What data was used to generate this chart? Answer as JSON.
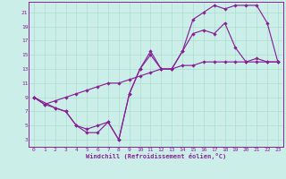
{
  "xlabel": "Windchill (Refroidissement éolien,°C)",
  "background_color": "#cceee8",
  "grid_color": "#aaddcc",
  "line_color": "#882299",
  "xlim_min": -0.5,
  "xlim_max": 23.5,
  "ylim_min": 2.0,
  "ylim_max": 22.5,
  "xticks": [
    0,
    1,
    2,
    3,
    4,
    5,
    6,
    7,
    8,
    9,
    10,
    11,
    12,
    13,
    14,
    15,
    16,
    17,
    18,
    19,
    20,
    21,
    22,
    23
  ],
  "yticks": [
    3,
    5,
    7,
    9,
    11,
    13,
    15,
    17,
    19,
    21
  ],
  "line1_x": [
    0,
    1,
    2,
    3,
    4,
    5,
    6,
    7,
    8,
    9,
    10,
    11,
    12,
    13,
    14,
    15,
    16,
    17,
    18,
    19,
    20,
    21,
    22,
    23
  ],
  "line1_y": [
    9,
    8,
    8.5,
    9,
    9.5,
    10,
    10.5,
    11,
    11,
    11.5,
    12,
    12.5,
    13,
    13,
    13.5,
    13.5,
    14,
    14,
    14,
    14,
    14,
    14,
    14,
    14
  ],
  "line2_x": [
    0,
    2,
    3,
    4,
    5,
    6,
    7,
    8,
    9,
    10,
    11,
    12,
    13,
    14,
    15,
    16,
    17,
    18,
    19,
    20,
    21,
    22,
    23
  ],
  "line2_y": [
    9,
    7.5,
    7,
    5,
    4.5,
    5,
    5.5,
    3,
    9.5,
    13,
    15,
    13,
    13,
    15.5,
    18,
    18.5,
    18,
    19.5,
    16,
    14,
    14.5,
    14,
    14
  ],
  "line3_x": [
    0,
    1,
    2,
    3,
    4,
    5,
    6,
    7,
    8,
    9,
    10,
    11,
    12,
    13,
    14,
    15,
    16,
    17,
    18,
    19,
    20,
    21,
    22,
    23
  ],
  "line3_y": [
    9,
    8,
    7.5,
    7,
    5,
    4,
    4,
    5.5,
    3,
    9.5,
    13,
    15.5,
    13,
    13,
    15.5,
    20,
    21,
    22,
    21.5,
    22,
    22,
    22,
    19.5,
    14
  ]
}
